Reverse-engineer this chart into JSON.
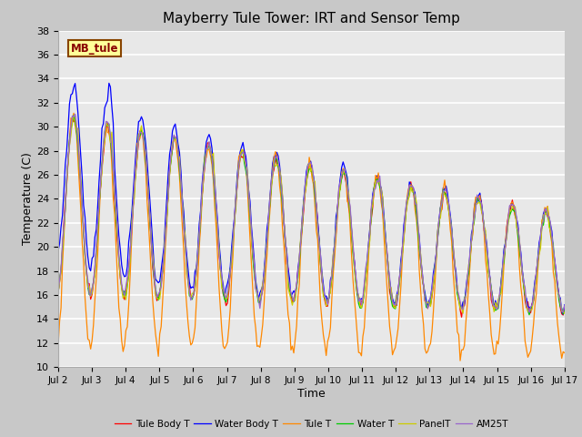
{
  "title": "Mayberry Tule Tower: IRT and Sensor Temp",
  "xlabel": "Time",
  "ylabel": "Temperature (C)",
  "ylim": [
    10,
    38
  ],
  "yticks": [
    10,
    12,
    14,
    16,
    18,
    20,
    22,
    24,
    26,
    28,
    30,
    32,
    34,
    36,
    38
  ],
  "xtick_labels": [
    "Jul 2",
    "Jul 3",
    "Jul 4",
    "Jul 5",
    "Jul 6",
    "Jul 7",
    "Jul 8",
    "Jul 9",
    "Jul 10",
    "Jul 11",
    "Jul 12",
    "Jul 13",
    "Jul 14",
    "Jul 15",
    "Jul 16",
    "Jul 17"
  ],
  "colors": {
    "Tule Body T": "#ff0000",
    "Water Body T": "#0000ff",
    "Tule T": "#ff8800",
    "Water T": "#00cc00",
    "PanelT": "#cccc00",
    "AM25T": "#9966cc"
  },
  "watermark_text": "MB_tule",
  "watermark_bg": "#ffff99",
  "watermark_edge": "#884400",
  "fig_bg": "#c8c8c8",
  "plot_bg": "#e8e8e8"
}
